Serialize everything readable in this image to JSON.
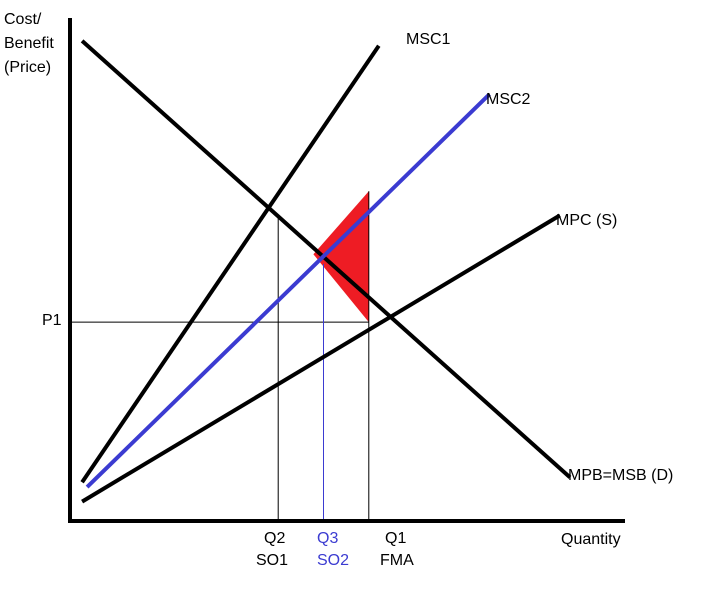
{
  "chart_data": {
    "type": "line",
    "title": "",
    "ylabel_lines": [
      "Cost/",
      "Benefit",
      "(Price)"
    ],
    "xlabel": "Quantity",
    "y_tick_label": "P1",
    "x_markers": [
      {
        "id": "q2",
        "label": "Q2",
        "sublabel": "SO1",
        "color": "#000000"
      },
      {
        "id": "q3",
        "label": "Q3",
        "sublabel": "SO2",
        "color": "#3b3bd1"
      },
      {
        "id": "q1",
        "label": "Q1",
        "sublabel": "FMA",
        "color": "#000000"
      }
    ],
    "series": [
      {
        "id": "msb",
        "name": "MPB=MSB (D)",
        "color": "#000000",
        "x": [
          0.02,
          0.99
        ],
        "y": [
          0.99,
          0.09
        ]
      },
      {
        "id": "mpc",
        "name": "MPC (S)",
        "color": "#000000",
        "x": [
          0.02,
          0.97
        ],
        "y": [
          0.04,
          0.63
        ]
      },
      {
        "id": "msc1",
        "name": "MSC1",
        "color": "#000000",
        "x": [
          0.02,
          0.61
        ],
        "y": [
          0.08,
          0.98
        ]
      },
      {
        "id": "msc2",
        "name": "MSC2",
        "color": "#3b3bd1",
        "x": [
          0.03,
          0.83
        ],
        "y": [
          0.07,
          0.88
        ]
      }
    ],
    "shaded_area": {
      "color": "#ee1c24",
      "points": [
        [
          0.48,
          0.55
        ],
        [
          0.59,
          0.41
        ],
        [
          0.59,
          0.68
        ]
      ]
    },
    "colors": {
      "axis": "#000000",
      "blue": "#3b3bd1",
      "red": "#ee1c24"
    }
  }
}
